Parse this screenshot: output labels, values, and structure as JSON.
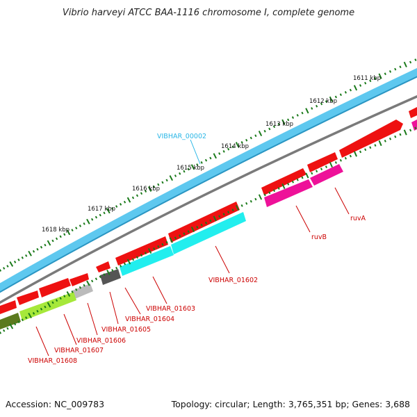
{
  "title": "Vibrio harveyi ATCC BAA-1116 chromosome I, complete genome",
  "footer": {
    "accession": "Accession: NC_009783",
    "summary": "Topology: circular; Length: 3,765,351 bp; Genes: 3,688"
  },
  "kbp_labels": [
    "1611 kbp",
    "1612 kbp",
    "1613 kbp",
    "1614 kbp",
    "1615 kbp",
    "1616 kbp",
    "1617 kbp",
    "1618 kbp"
  ],
  "gene_labels": {
    "vibhar_00002": "VIBHAR_00002",
    "ruvA": "ruvA",
    "ruvB": "ruvB",
    "vibhar_01602": "VIBHAR_01602",
    "vibhar_01603": "VIBHAR_01603",
    "vibhar_01604": "VIBHAR_01604",
    "vibhar_01605": "VIBHAR_01605",
    "vibhar_01606": "VIBHAR_01606",
    "vibhar_01607": "VIBHAR_01607",
    "vibhar_01608": "VIBHAR_01608"
  },
  "colors": {
    "outer_track": "#5ec8ef",
    "backbone": "#7a7a7a",
    "red_gene": "#ee1111",
    "magenta_gene": "#ee1199",
    "cyan_gene": "#22eeee",
    "green_gene": "#a6e83a",
    "dark_green_gene": "#5b7a1e",
    "gray_gene": "#bbbbbb",
    "dark_gray_gene": "#555555",
    "tick": "#1a7a1a",
    "label_red": "#cc0000",
    "label_blue": "#29b6e6"
  }
}
